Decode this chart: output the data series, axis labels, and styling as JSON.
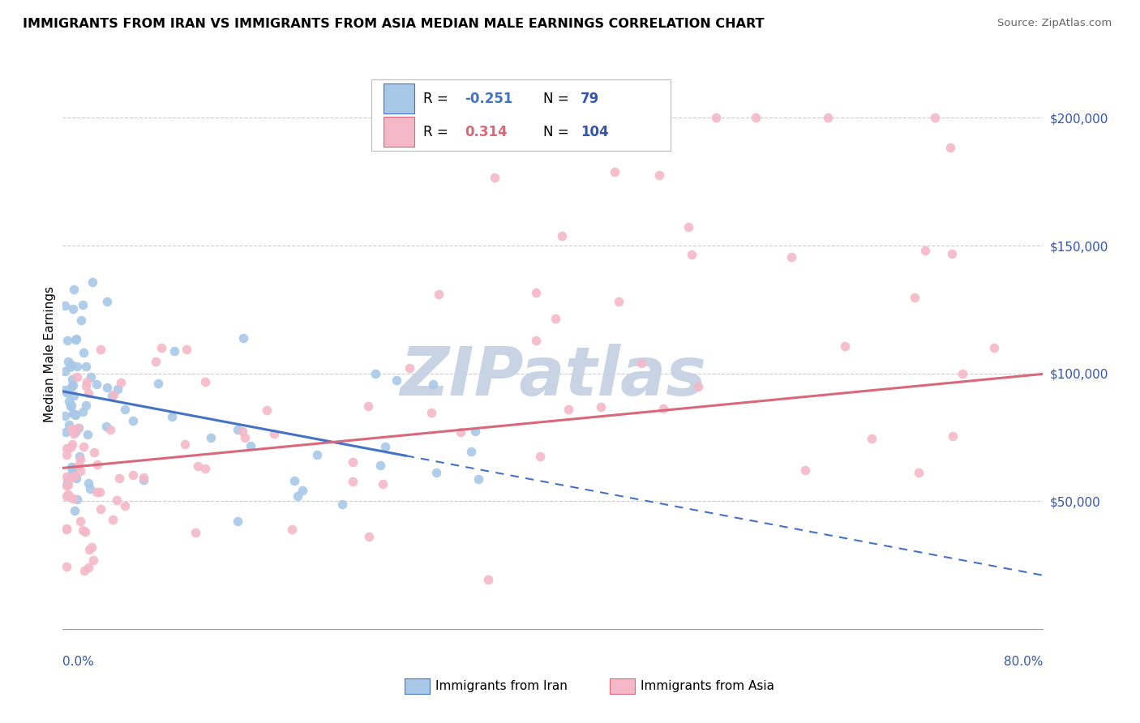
{
  "title": "IMMIGRANTS FROM IRAN VS IMMIGRANTS FROM ASIA MEDIAN MALE EARNINGS CORRELATION CHART",
  "source": "Source: ZipAtlas.com",
  "ylabel": "Median Male Earnings",
  "xlim": [
    0.0,
    80.0
  ],
  "ylim": [
    0,
    215000
  ],
  "yticks": [
    50000,
    100000,
    150000,
    200000
  ],
  "ytick_labels": [
    "$50,000",
    "$100,000",
    "$150,000",
    "$200,000"
  ],
  "legend_iran_R": "-0.251",
  "legend_iran_N": "79",
  "legend_asia_R": "0.314",
  "legend_asia_N": "104",
  "iran_color": "#a8c8e8",
  "asia_color": "#f4b8c8",
  "trend_iran_color": "#4472c4",
  "trend_asia_color": "#d9687a",
  "watermark": "ZIPatlas",
  "watermark_color": "#c8d4e4",
  "iran_intercept": 93000,
  "iran_slope": -900,
  "asia_intercept": 63000,
  "asia_slope": 460,
  "iran_solid_end": 28,
  "background_color": "#ffffff",
  "grid_color": "#cccccc",
  "axis_color": "#999999",
  "tick_color": "#3355aa",
  "title_fontsize": 11.5,
  "tick_fontsize": 11,
  "watermark_fontsize": 60,
  "scatter_size": 70
}
